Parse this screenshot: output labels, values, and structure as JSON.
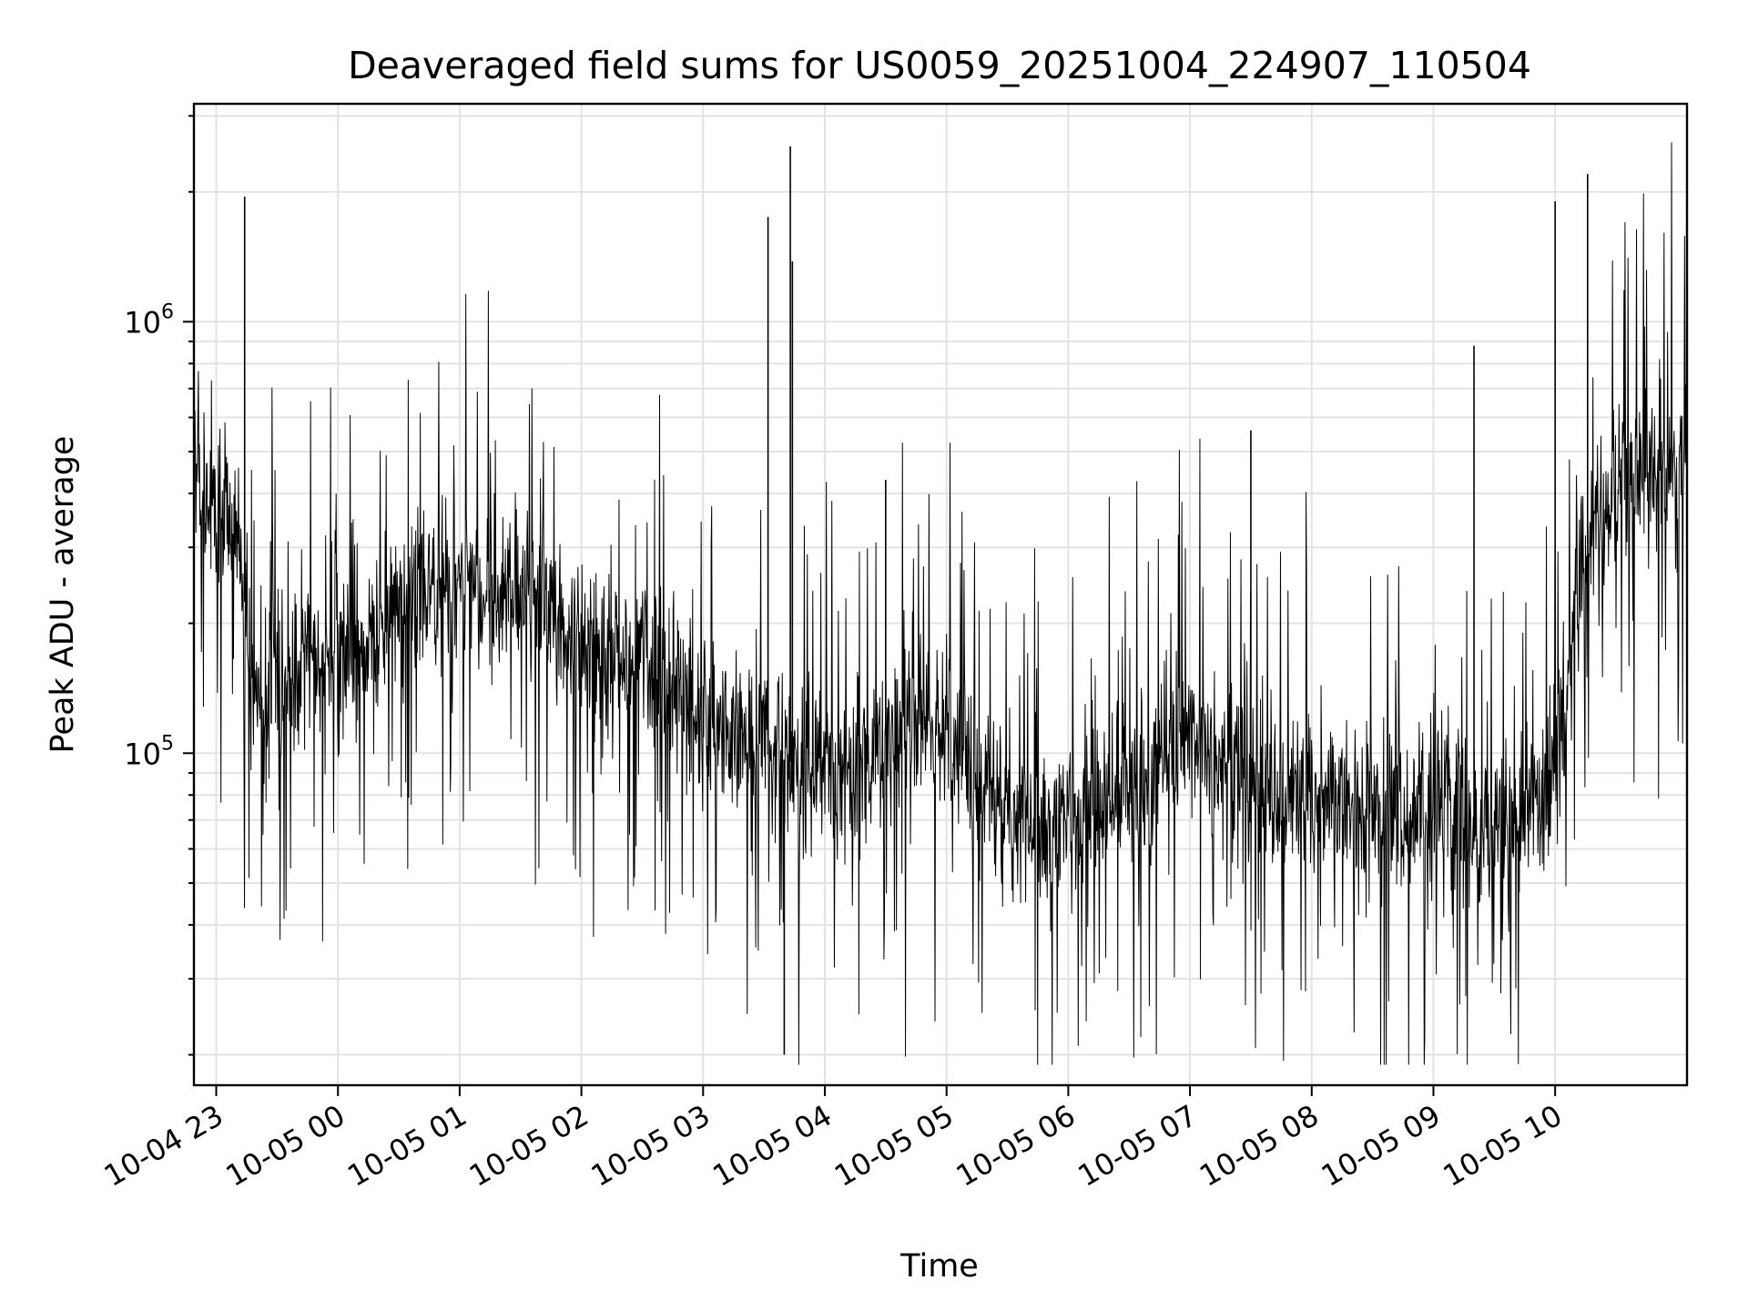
{
  "chart_data": {
    "type": "line",
    "title": "Deaveraged field sums for US0059_20251004_224907_110504",
    "xlabel": "Time",
    "ylabel": "Peak ADU - average",
    "y_scale": "log",
    "grid": true,
    "x_ticks": [
      {
        "label": "10-04 23",
        "t": "2025-10-04T23:00"
      },
      {
        "label": "10-05 00",
        "t": "2025-10-05T00:00"
      },
      {
        "label": "10-05 01",
        "t": "2025-10-05T01:00"
      },
      {
        "label": "10-05 02",
        "t": "2025-10-05T02:00"
      },
      {
        "label": "10-05 03",
        "t": "2025-10-05T03:00"
      },
      {
        "label": "10-05 04",
        "t": "2025-10-05T04:00"
      },
      {
        "label": "10-05 05",
        "t": "2025-10-05T05:00"
      },
      {
        "label": "10-05 06",
        "t": "2025-10-05T06:00"
      },
      {
        "label": "10-05 07",
        "t": "2025-10-05T07:00"
      },
      {
        "label": "10-05 08",
        "t": "2025-10-05T08:00"
      },
      {
        "label": "10-05 09",
        "t": "2025-10-05T09:00"
      },
      {
        "label": "10-05 10",
        "t": "2025-10-05T10:00"
      }
    ],
    "y_ticks": [
      {
        "base": "10",
        "exp": "5",
        "value": 100000
      },
      {
        "base": "10",
        "exp": "6",
        "value": 1000000
      }
    ],
    "xlim": [
      "2025-10-04T22:49",
      "2025-10-05T11:05"
    ],
    "ylim": [
      17000,
      3200000
    ],
    "series": [
      {
        "color": "#000000",
        "x": [
          "2025-10-04T22:49",
          "2025-10-04T23:00",
          "2025-10-04T23:10",
          "2025-10-04T23:20",
          "2025-10-04T23:30",
          "2025-10-04T23:45",
          "2025-10-05T00:00",
          "2025-10-05T00:15",
          "2025-10-05T00:30",
          "2025-10-05T00:45",
          "2025-10-05T01:00",
          "2025-10-05T01:15",
          "2025-10-05T01:30",
          "2025-10-05T01:45",
          "2025-10-05T02:00",
          "2025-10-05T02:15",
          "2025-10-05T02:30",
          "2025-10-05T02:45",
          "2025-10-05T03:00",
          "2025-10-05T03:15",
          "2025-10-05T03:30",
          "2025-10-05T03:45",
          "2025-10-05T04:00",
          "2025-10-05T04:15",
          "2025-10-05T04:30",
          "2025-10-05T04:45",
          "2025-10-05T05:00",
          "2025-10-05T05:15",
          "2025-10-05T05:30",
          "2025-10-05T05:45",
          "2025-10-05T06:00",
          "2025-10-05T06:15",
          "2025-10-05T06:30",
          "2025-10-05T06:45",
          "2025-10-05T07:00",
          "2025-10-05T07:15",
          "2025-10-05T07:30",
          "2025-10-05T07:45",
          "2025-10-05T08:00",
          "2025-10-05T08:15",
          "2025-10-05T08:30",
          "2025-10-05T08:45",
          "2025-10-05T09:00",
          "2025-10-05T09:15",
          "2025-10-05T09:30",
          "2025-10-05T09:45",
          "2025-10-05T10:00",
          "2025-10-05T10:15",
          "2025-10-05T10:30",
          "2025-10-05T11:05"
        ],
        "y": [
          500000,
          350000,
          340000,
          120000,
          140000,
          160000,
          170000,
          190000,
          210000,
          230000,
          250000,
          240000,
          220000,
          210000,
          190000,
          170000,
          160000,
          140000,
          120000,
          115000,
          100000,
          95000,
          90000,
          95000,
          110000,
          120000,
          110000,
          90000,
          75000,
          70000,
          68000,
          75000,
          80000,
          90000,
          110000,
          95000,
          85000,
          80000,
          78000,
          75000,
          72000,
          70000,
          68000,
          66000,
          65000,
          70000,
          90000,
          300000,
          420000,
          480000
        ],
        "spikes": [
          {
            "t": "2025-10-04T23:14",
            "y": 1950000
          },
          {
            "t": "2025-10-05T03:32",
            "y": 1750000
          },
          {
            "t": "2025-10-05T03:43",
            "y": 2550000
          },
          {
            "t": "2025-10-05T03:44",
            "y": 1380000
          },
          {
            "t": "2025-10-05T03:40",
            "y": 20000
          },
          {
            "t": "2025-10-05T04:30",
            "y": 430000
          },
          {
            "t": "2025-10-05T07:30",
            "y": 560000
          },
          {
            "t": "2025-10-05T09:20",
            "y": 880000
          },
          {
            "t": "2025-10-05T10:00",
            "y": 1900000
          },
          {
            "t": "2025-10-05T10:16",
            "y": 2200000
          }
        ]
      }
    ]
  }
}
